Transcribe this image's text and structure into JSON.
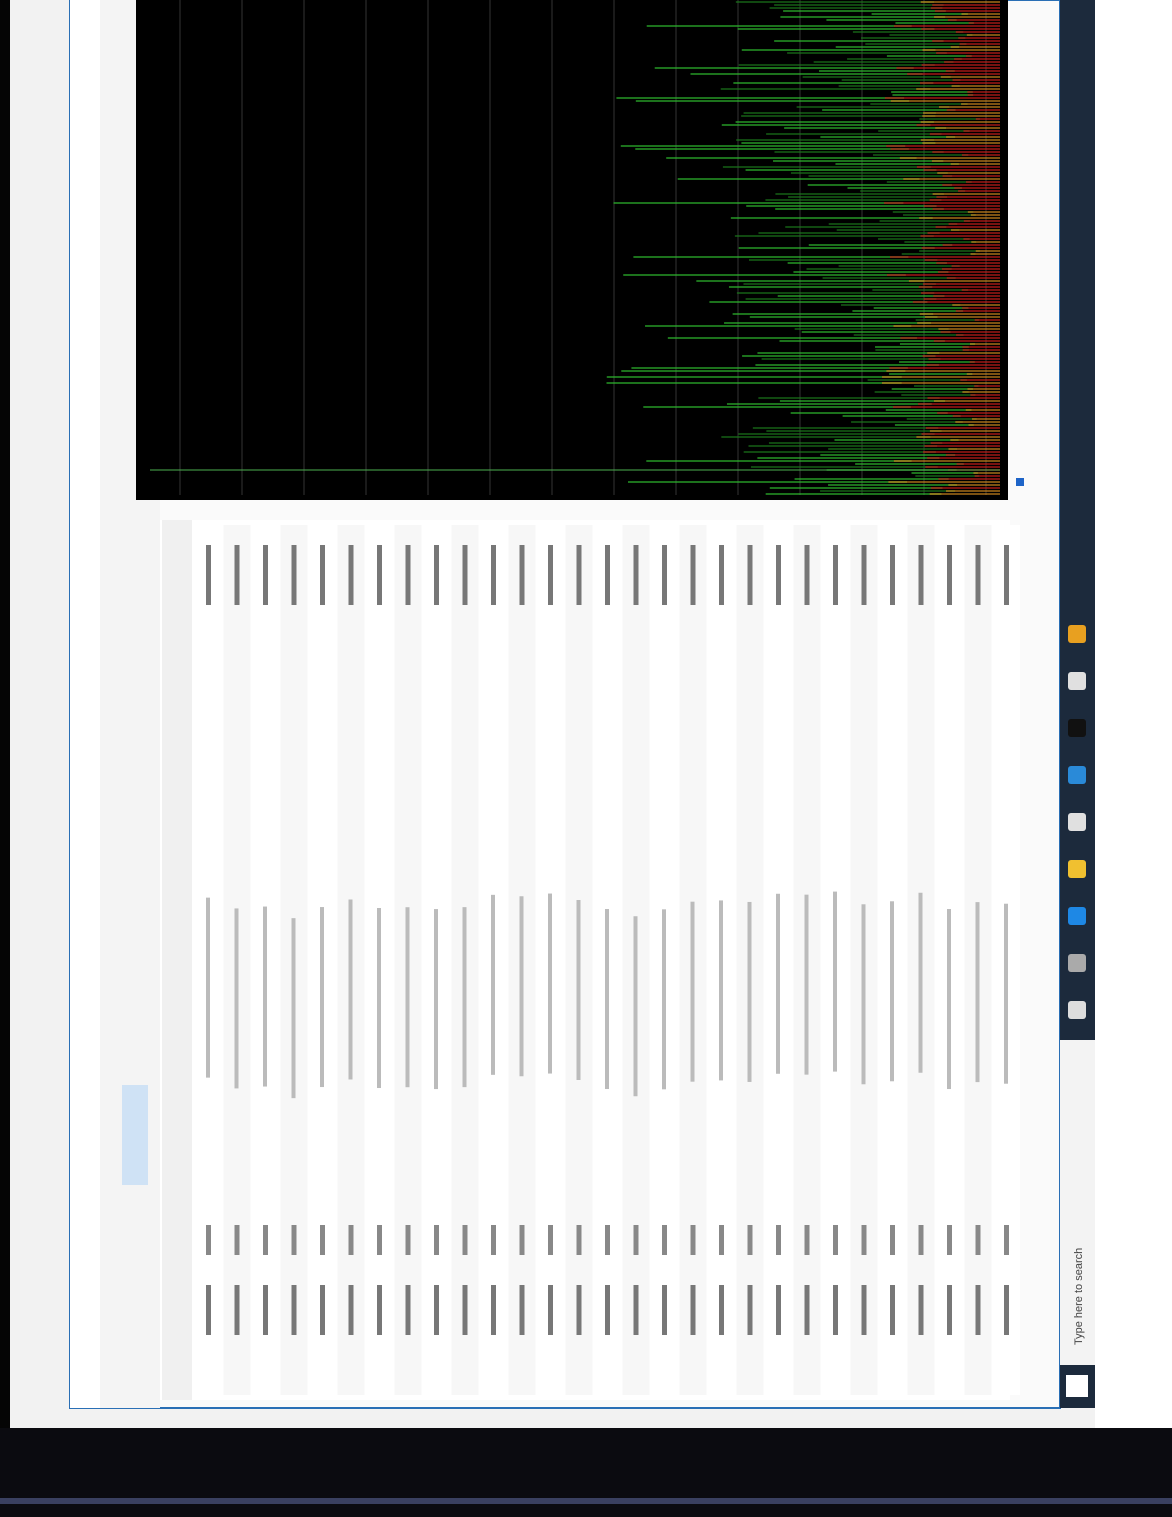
{
  "taskbar": {
    "search": "Type here to search"
  }
}
